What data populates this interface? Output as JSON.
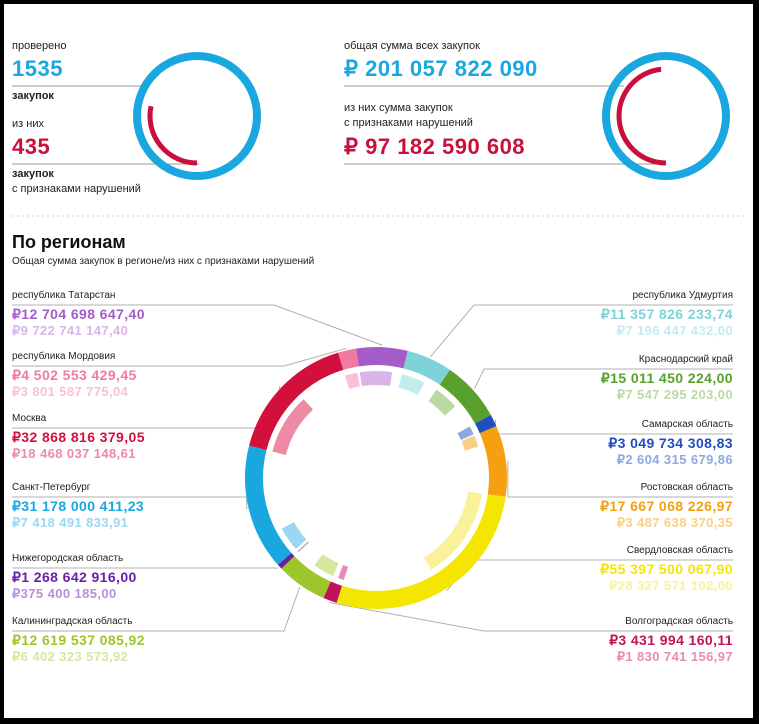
{
  "summary": {
    "checked_label": "проверено",
    "checked_count": "1535",
    "checked_unit": "закупок",
    "of_them_label": "из них",
    "violations_count": "435",
    "violations_unit": "закупок",
    "violations_suffix": "с признаками нарушений",
    "total_label": "общая сумма всех закупок",
    "total_amount": "₽ 201 057 822 090",
    "violations_sum_label_1": "из них сумма закупок",
    "violations_sum_label_2": "с признаками нарушений",
    "violations_sum_amount": "₽ 97 182 590 608"
  },
  "regions_section": {
    "title": "По регионам",
    "subtitle": "Общая сумма закупок в регионе/из них с признаками нарушений"
  },
  "colors": {
    "blue": "#1aa7e0",
    "red": "#c8103c",
    "gray_line": "#b0b0b0"
  },
  "chart_data": [
    {
      "type": "pie",
      "title": "",
      "values": [
        1535,
        435
      ],
      "units": "закупок"
    },
    {
      "type": "pie",
      "title": "",
      "values": [
        201057822090,
        97182590608
      ],
      "units": "₽"
    },
    {
      "type": "pie",
      "title": "По регионам",
      "subtitle": "Общая сумма закупок в регионе/из них с признаками нарушений",
      "series": [
        {
          "name": "республика Удмуртия",
          "total": "₽11 357 826 233,74",
          "violations": "₽7 196 447 432,00",
          "total_value": 11357826233.74,
          "violations_value": 7196447432.0,
          "color": "#7dd3d8",
          "light": "#c3ecee"
        },
        {
          "name": "Краснодарский край",
          "total": "₽15 011 450 224,00",
          "violations": "₽7 547 295 203,00",
          "total_value": 15011450224.0,
          "violations_value": 7547295203.0,
          "color": "#5aa02c",
          "light": "#bcd9a4"
        },
        {
          "name": "Самарская область",
          "total": "₽3 049 734 308,83",
          "violations": "₽2 604 315 679,86",
          "total_value": 3049734308.83,
          "violations_value": 2604315679.86,
          "color": "#1f4fbf",
          "light": "#8ea9e0"
        },
        {
          "name": "Ростовская область",
          "total": "₽17 667 068 226,97",
          "violations": "₽3 487 638 370,35",
          "total_value": 17667068226.97,
          "violations_value": 3487638370.35,
          "color": "#f4a012",
          "light": "#f9cf86"
        },
        {
          "name": "Свердловская область",
          "total": "₽55 397 500 067,90",
          "violations": "₽28 327 571 102,00",
          "total_value": 55397500067.9,
          "violations_value": 28327571102.0,
          "color": "#f4e600",
          "light": "#faf29a"
        },
        {
          "name": "Волгоградская область",
          "total": "₽3 431 994 160,11",
          "violations": "₽1 830 741 156,97",
          "total_value": 3431994160.11,
          "violations_value": 1830741156.97,
          "color": "#c0145a",
          "light": "#e88cb2"
        },
        {
          "name": "Калининградская область",
          "total": "₽12 619 537 085,92",
          "violations": "₽6 402 323 573,92",
          "total_value": 12619537085.92,
          "violations_value": 6402323573.92,
          "color": "#9cc62b",
          "light": "#d4e8a0"
        },
        {
          "name": "Нижегородская область",
          "total": "₽1 268 642 916,00",
          "violations": "₽375 400 185,00",
          "total_value": 1268642916.0,
          "violations_value": 375400185.0,
          "color": "#6a1fa8",
          "light": "#b88fdc"
        },
        {
          "name": "Санкт-Петербург",
          "total": "₽31 178 000 411,23",
          "violations": "₽7 418 491 833,91",
          "total_value": 31178000411.23,
          "violations_value": 7418491833.91,
          "color": "#1aa7e0",
          "light": "#9ad8f2"
        },
        {
          "name": "Москва",
          "total": "₽32 868 816 379,05",
          "violations": "₽18 468 037 148,61",
          "total_value": 32868816379.05,
          "violations_value": 18468037148.61,
          "color": "#d3103c",
          "light": "#ee8aa4"
        },
        {
          "name": "республика Мордовия",
          "total": "₽4 502 553 429,45",
          "violations": "₽3 801 587 775,04",
          "total_value": 4502553429.45,
          "violations_value": 3801587775.04,
          "color": "#f27aa0",
          "light": "#f9c2d4"
        },
        {
          "name": "республика Татарстан",
          "total": "₽12 704 698 647,40",
          "violations": "₽9 722 741 147,40",
          "total_value": 12704698647.4,
          "violations_value": 9722741147.4,
          "color": "#a45cc8",
          "light": "#d7b5e8"
        }
      ]
    }
  ]
}
